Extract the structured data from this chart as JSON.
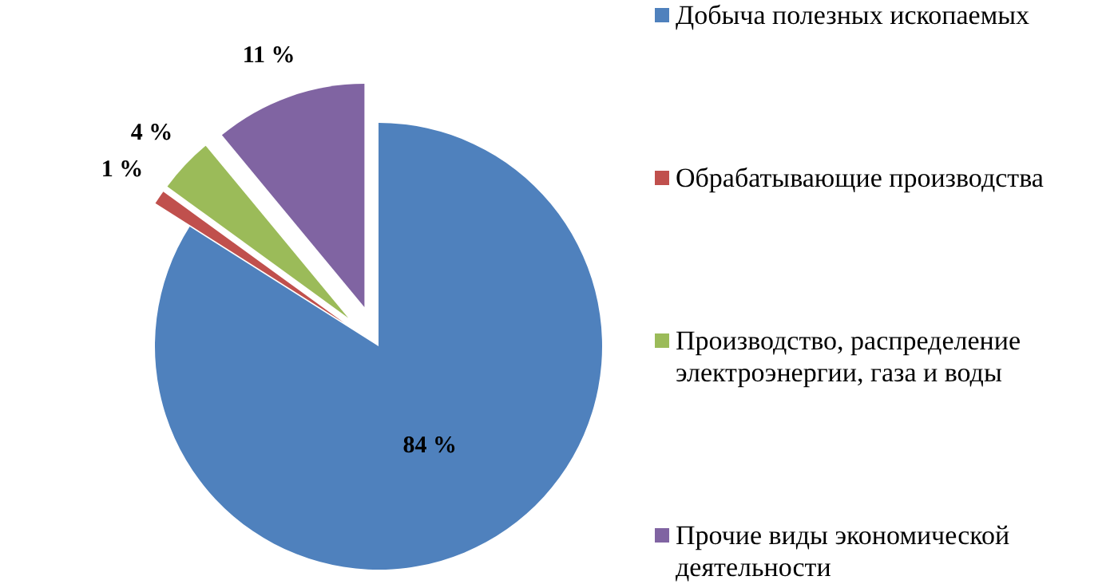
{
  "chart_data": {
    "type": "pie",
    "categories": [
      "Добыча полезных ископаемых",
      "Обрабатывающие производства",
      "Производство, распределение электроэнергии, газа и воды",
      "Прочие виды экономической деятельности"
    ],
    "values": [
      84,
      1,
      4,
      11
    ],
    "colors": [
      "#4f81bd",
      "#c0504d",
      "#9bbb59",
      "#8064a2"
    ],
    "value_labels": [
      "84 %",
      "1 %",
      "4 %",
      "11 %"
    ],
    "legend": "right"
  }
}
